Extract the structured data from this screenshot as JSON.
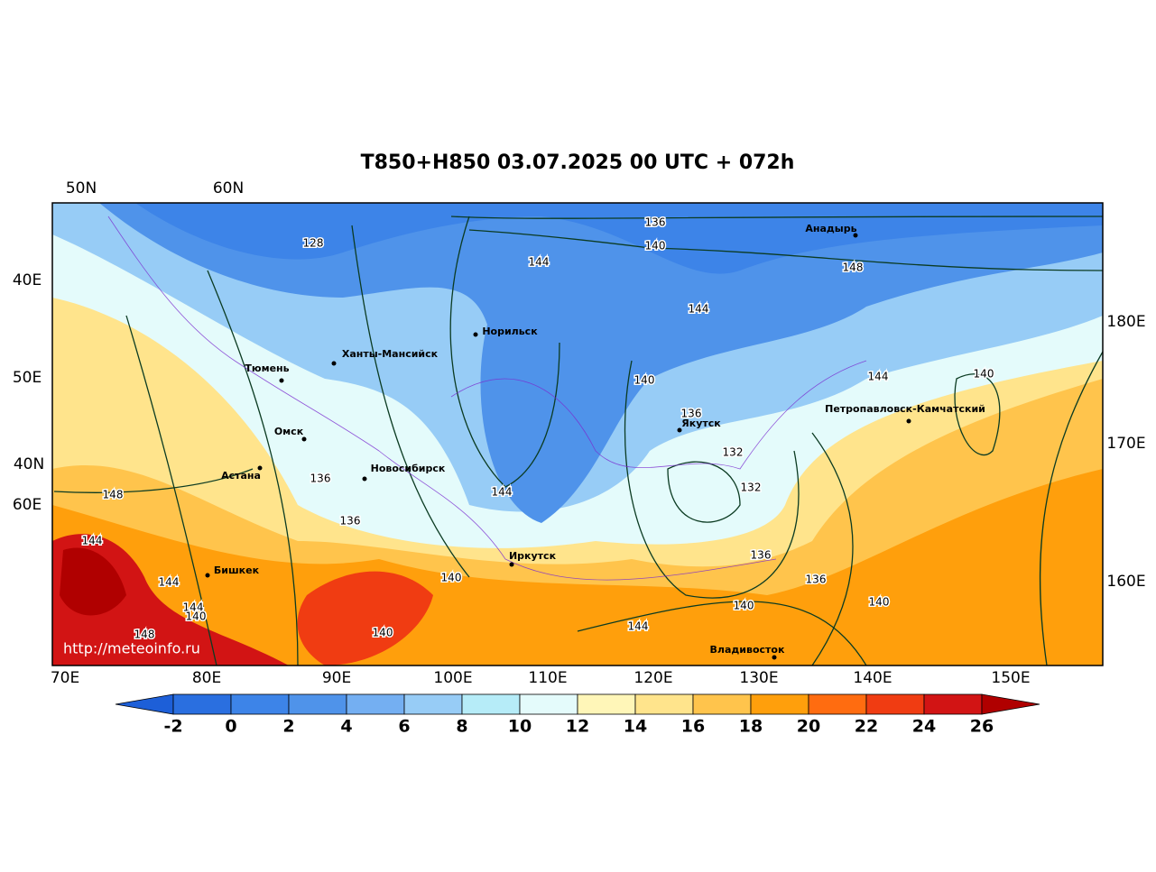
{
  "title": "T850+H850 03.07.2025 00 UTC + 072h",
  "axis_labels": {
    "top": [
      "50N",
      "60N"
    ],
    "left": [
      "40E",
      "50E",
      "40N",
      "60E"
    ],
    "right": [
      "180E",
      "170E",
      "160E"
    ],
    "bottom": [
      "70E",
      "80E",
      "90E",
      "100E",
      "110E",
      "120E",
      "130E",
      "140E",
      "150E"
    ]
  },
  "cities": [
    "Тюмень",
    "Ханты-Мансийск",
    "Норильск",
    "Омск",
    "Астана",
    "Новосибирск",
    "Бишкек",
    "Иркутск",
    "Якутск",
    "Анадырь",
    "Петропавловск-Камчатский",
    "Владивосток"
  ],
  "contour_labels": [
    128,
    144,
    136,
    140,
    144,
    148,
    140,
    144,
    136,
    132,
    132,
    144,
    140,
    136,
    136,
    136,
    140,
    136,
    140,
    144,
    148,
    144,
    144,
    144,
    140,
    148,
    140,
    140
  ],
  "url": "http://meteoinfo.ru",
  "colorbar": {
    "ticks": [
      -2,
      0,
      2,
      4,
      6,
      8,
      10,
      12,
      14,
      16,
      18,
      20,
      22,
      24,
      26
    ],
    "colors": [
      "#1d5fd8",
      "#2a6fe0",
      "#3d84e8",
      "#4f93ea",
      "#74aff2",
      "#97ccf6",
      "#b6ecf8",
      "#e4fbfb",
      "#fff6b8",
      "#ffe48c",
      "#ffc44c",
      "#ff9f0c",
      "#ff6c10",
      "#f03c12",
      "#d21414",
      "#b00000"
    ]
  }
}
